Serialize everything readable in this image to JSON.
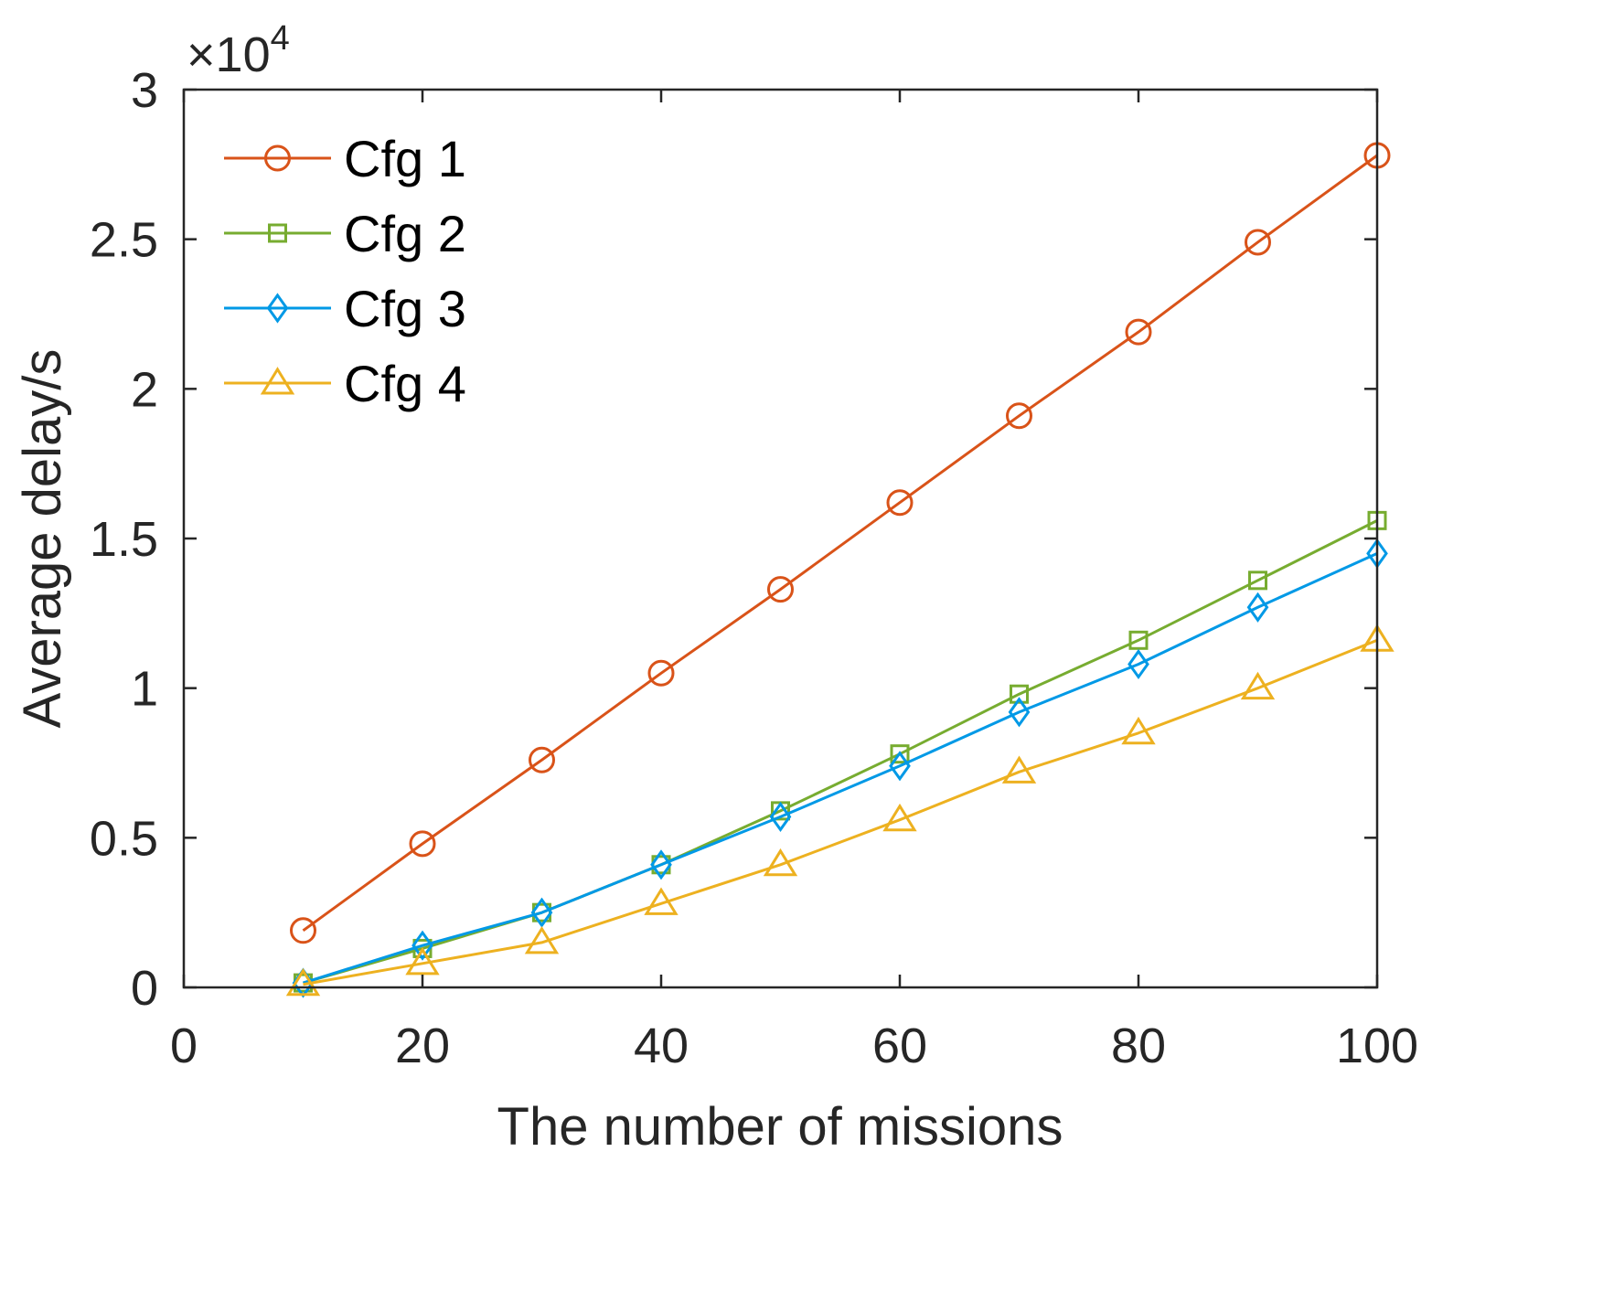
{
  "chart_data": {
    "type": "line",
    "title": "",
    "xlabel": "The number of missions",
    "ylabel": "Average delay/s",
    "xlim": [
      0,
      100
    ],
    "ylim": [
      0,
      30000
    ],
    "xticks": [
      0,
      20,
      40,
      60,
      80,
      100
    ],
    "yticks": [
      0,
      5000,
      10000,
      15000,
      20000,
      25000,
      30000
    ],
    "ytick_labels": [
      "0",
      "0.5",
      "1",
      "1.5",
      "2",
      "2.5",
      "3"
    ],
    "y_exponent": {
      "prefix": "×10",
      "power": "4"
    },
    "grid": false,
    "legend_position": "top-left",
    "x": [
      10,
      20,
      30,
      40,
      50,
      60,
      70,
      80,
      90,
      100
    ],
    "series": [
      {
        "name": "Cfg 1",
        "color": "#D95319",
        "marker": "circle",
        "values": [
          1900,
          4800,
          7600,
          10500,
          13300,
          16200,
          19100,
          21900,
          24900,
          27800
        ]
      },
      {
        "name": "Cfg 2",
        "color": "#77AC30",
        "marker": "square",
        "values": [
          150,
          1300,
          2500,
          4100,
          5900,
          7800,
          9800,
          11600,
          13600,
          15600
        ]
      },
      {
        "name": "Cfg 3",
        "color": "#0099E6",
        "marker": "diamond",
        "values": [
          150,
          1400,
          2500,
          4100,
          5700,
          7400,
          9200,
          10800,
          12700,
          14500
        ]
      },
      {
        "name": "Cfg 4",
        "color": "#EDB120",
        "marker": "triangle",
        "values": [
          100,
          800,
          1500,
          2800,
          4100,
          5600,
          7200,
          8500,
          10000,
          11600
        ]
      }
    ]
  }
}
